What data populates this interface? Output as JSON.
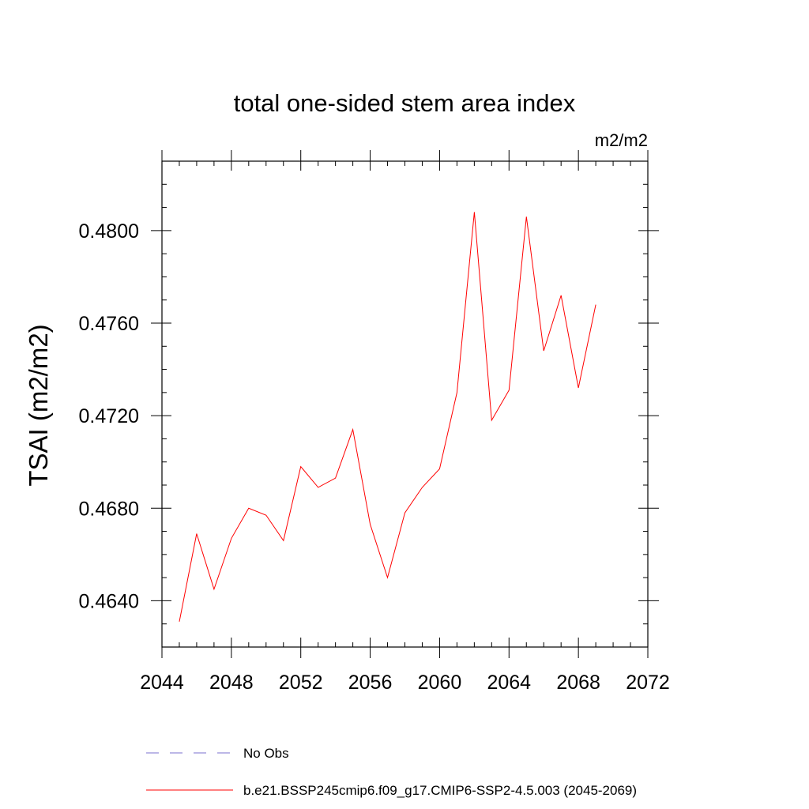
{
  "chart_data": {
    "type": "line",
    "title": "total one-sided stem area index",
    "units_label": "m2/m2",
    "ylabel": "TSAI  (m2/m2)",
    "xlabel": "",
    "xlim": [
      2044,
      2072
    ],
    "ylim": [
      0.462,
      0.483
    ],
    "x_ticks": [
      2044,
      2048,
      2052,
      2056,
      2060,
      2064,
      2068,
      2072
    ],
    "x_tick_labels": [
      "2044",
      "2048",
      "2052",
      "2056",
      "2060",
      "2064",
      "2068",
      "2072"
    ],
    "y_ticks": [
      0.464,
      0.468,
      0.472,
      0.476,
      0.48
    ],
    "y_tick_labels": [
      "0.4640",
      "0.4680",
      "0.4720",
      "0.4760",
      "0.4800"
    ],
    "series": [
      {
        "name": "b.e21.BSSP245cmip6.f09_g17.CMIP6-SSP2-4.5.003 (2045-2069)",
        "color": "#ff0000",
        "x": [
          2045,
          2046,
          2047,
          2048,
          2049,
          2050,
          2051,
          2052,
          2053,
          2054,
          2055,
          2056,
          2057,
          2058,
          2059,
          2060,
          2061,
          2062,
          2063,
          2064,
          2065,
          2066,
          2067,
          2068,
          2069
        ],
        "values": [
          0.4631,
          0.4669,
          0.4645,
          0.4667,
          0.468,
          0.4677,
          0.4666,
          0.4698,
          0.4689,
          0.4693,
          0.4714,
          0.4673,
          0.465,
          0.4678,
          0.4689,
          0.4697,
          0.473,
          0.4808,
          0.4718,
          0.4731,
          0.4806,
          0.4748,
          0.4772,
          0.4732,
          0.4768
        ]
      }
    ],
    "legend": [
      {
        "label": "No Obs",
        "style": "dashed",
        "color": "#7a6fcf"
      },
      {
        "label": "b.e21.BSSP245cmip6.f09_g17.CMIP6-SSP2-4.5.003 (2045-2069)",
        "style": "solid",
        "color": "#ff0000"
      }
    ],
    "legend_position": "bottom"
  }
}
